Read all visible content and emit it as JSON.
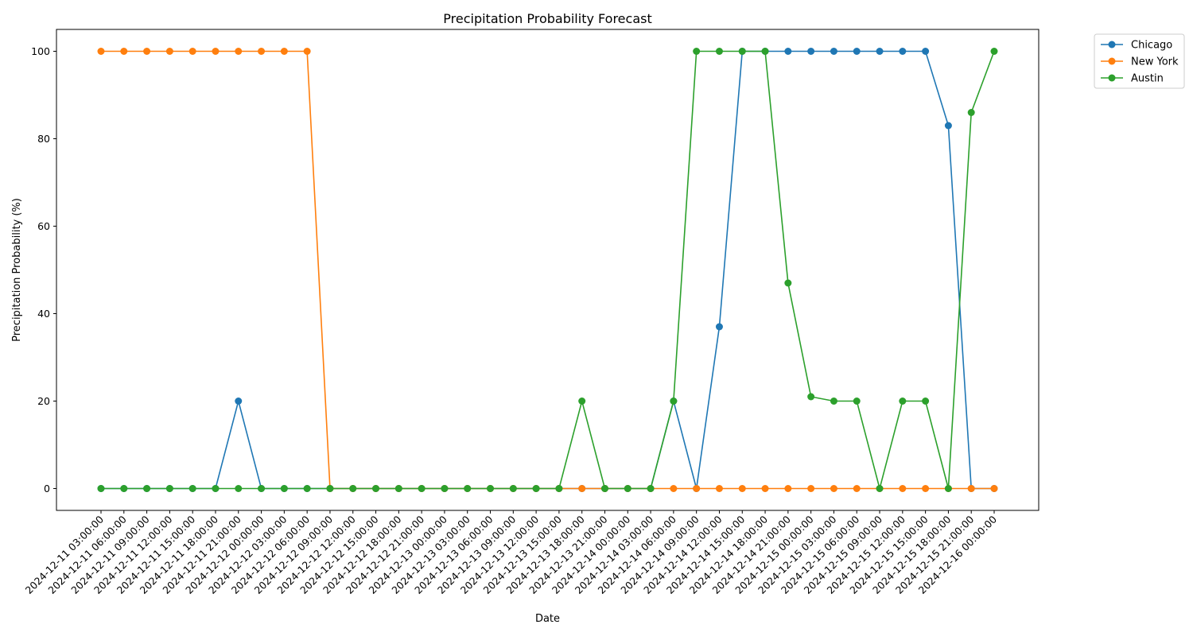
{
  "chart_data": {
    "type": "line",
    "title": "Precipitation Probability Forecast",
    "xlabel": "Date",
    "ylabel": "Precipitation Probability (%)",
    "ylim": [
      -5,
      105
    ],
    "yticks": [
      0,
      20,
      40,
      60,
      80,
      100
    ],
    "grid": false,
    "legend_position": "outside-top-right",
    "x": [
      "2024-12-11 03:00:00",
      "2024-12-11 06:00:00",
      "2024-12-11 09:00:00",
      "2024-12-11 12:00:00",
      "2024-12-11 15:00:00",
      "2024-12-11 18:00:00",
      "2024-12-11 21:00:00",
      "2024-12-12 00:00:00",
      "2024-12-12 03:00:00",
      "2024-12-12 06:00:00",
      "2024-12-12 09:00:00",
      "2024-12-12 12:00:00",
      "2024-12-12 15:00:00",
      "2024-12-12 18:00:00",
      "2024-12-12 21:00:00",
      "2024-12-13 00:00:00",
      "2024-12-13 03:00:00",
      "2024-12-13 06:00:00",
      "2024-12-13 09:00:00",
      "2024-12-13 12:00:00",
      "2024-12-13 15:00:00",
      "2024-12-13 18:00:00",
      "2024-12-13 21:00:00",
      "2024-12-14 00:00:00",
      "2024-12-14 03:00:00",
      "2024-12-14 06:00:00",
      "2024-12-14 09:00:00",
      "2024-12-14 12:00:00",
      "2024-12-14 15:00:00",
      "2024-12-14 18:00:00",
      "2024-12-14 21:00:00",
      "2024-12-15 00:00:00",
      "2024-12-15 03:00:00",
      "2024-12-15 06:00:00",
      "2024-12-15 09:00:00",
      "2024-12-15 12:00:00",
      "2024-12-15 15:00:00",
      "2024-12-15 18:00:00",
      "2024-12-15 21:00:00",
      "2024-12-16 00:00:00"
    ],
    "series": [
      {
        "name": "Chicago",
        "color": "#1f77b4",
        "values": [
          0,
          0,
          0,
          0,
          0,
          0,
          20,
          0,
          0,
          0,
          0,
          0,
          0,
          0,
          0,
          0,
          0,
          0,
          0,
          0,
          0,
          0,
          0,
          0,
          0,
          20,
          0,
          37,
          100,
          100,
          100,
          100,
          100,
          100,
          100,
          100,
          100,
          83,
          0,
          0
        ]
      },
      {
        "name": "New York",
        "color": "#ff7f0e",
        "values": [
          100,
          100,
          100,
          100,
          100,
          100,
          100,
          100,
          100,
          100,
          0,
          0,
          0,
          0,
          0,
          0,
          0,
          0,
          0,
          0,
          0,
          0,
          0,
          0,
          0,
          0,
          0,
          0,
          0,
          0,
          0,
          0,
          0,
          0,
          0,
          0,
          0,
          0,
          0,
          0
        ]
      },
      {
        "name": "Austin",
        "color": "#2ca02c",
        "values": [
          0,
          0,
          0,
          0,
          0,
          0,
          0,
          0,
          0,
          0,
          0,
          0,
          0,
          0,
          0,
          0,
          0,
          0,
          0,
          0,
          0,
          20,
          0,
          0,
          0,
          20,
          100,
          100,
          100,
          100,
          47,
          21,
          20,
          20,
          0,
          20,
          20,
          0,
          86,
          100
        ]
      }
    ]
  }
}
